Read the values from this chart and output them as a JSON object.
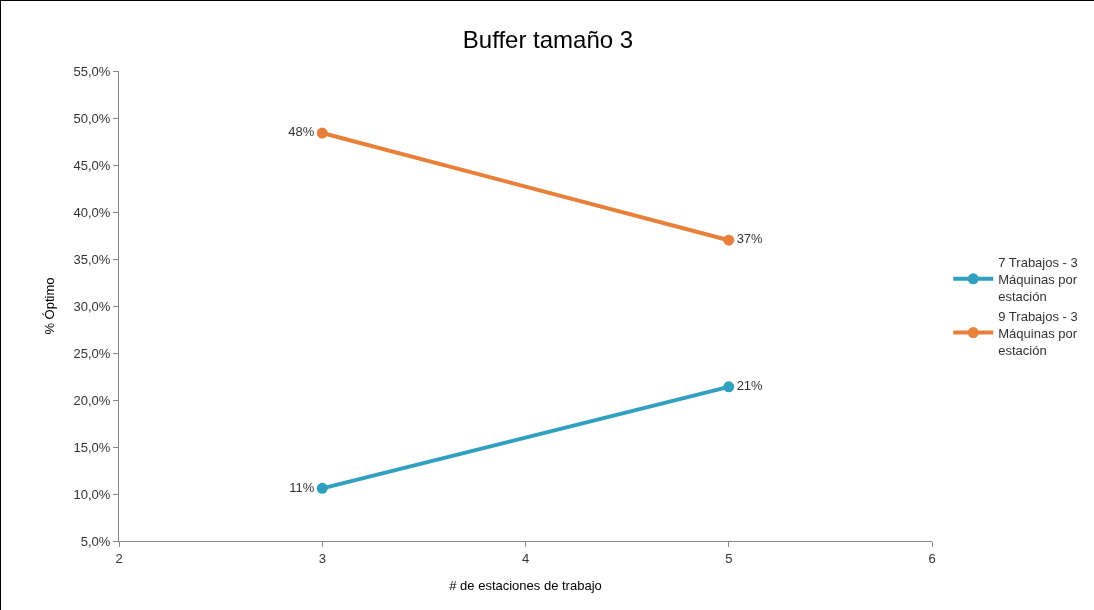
{
  "chart_data": {
    "type": "line",
    "title": "Buffer tamaño 3",
    "xlabel": "# de estaciones de trabajo",
    "ylabel": "% Óptimo",
    "x": [
      3,
      5
    ],
    "series": [
      {
        "name": "7 Trabajos - 3 Máquinas por estación",
        "color": "#31a0c0",
        "values": [
          10.6,
          21.4
        ],
        "value_labels": [
          "11%",
          "21%"
        ]
      },
      {
        "name": "9 Trabajos - 3 Máquinas por estación",
        "color": "#e8803a",
        "values": [
          48.4,
          37.0
        ],
        "value_labels": [
          "48%",
          "37%"
        ]
      }
    ],
    "xlim": [
      2,
      6
    ],
    "xticks": [
      2,
      3,
      4,
      5,
      6
    ],
    "ylim": [
      5,
      55
    ],
    "yticks": [
      {
        "value": 5,
        "label": "5,0%"
      },
      {
        "value": 10,
        "label": "10,0%"
      },
      {
        "value": 15,
        "label": "15,0%"
      },
      {
        "value": 20,
        "label": "20,0%"
      },
      {
        "value": 25,
        "label": "25,0%"
      },
      {
        "value": 30,
        "label": "30,0%"
      },
      {
        "value": 35,
        "label": "35,0%"
      },
      {
        "value": 40,
        "label": "40,0%"
      },
      {
        "value": 45,
        "label": "45,0%"
      },
      {
        "value": 50,
        "label": "50,0%"
      },
      {
        "value": 55,
        "label": "55,0%"
      }
    ],
    "grid": false,
    "legend": "right",
    "marker": "circle",
    "line_style": "solid"
  }
}
